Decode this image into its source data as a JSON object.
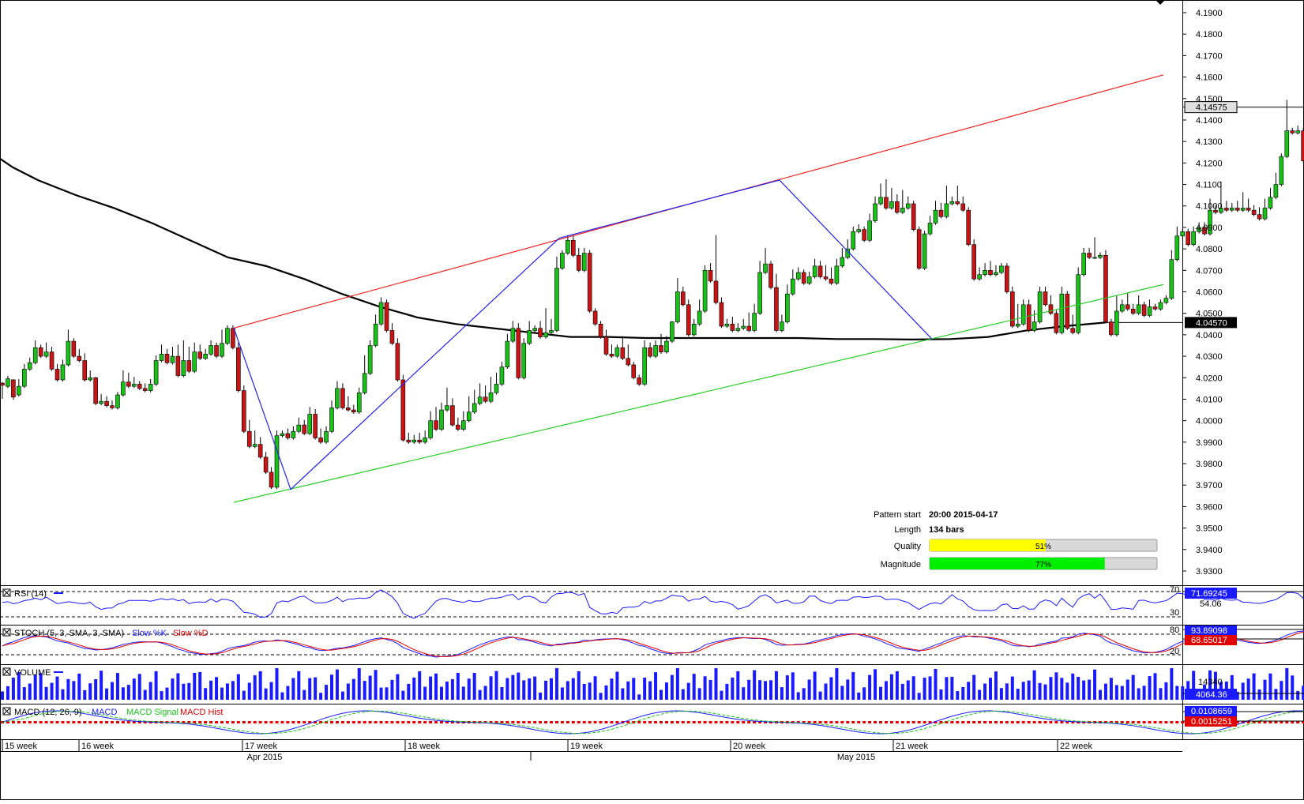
{
  "chart_data": {
    "type": "candlestick",
    "price_axis": {
      "ylim": [
        3.925,
        4.195
      ],
      "ticks": [
        "4.1900",
        "4.1800",
        "4.1700",
        "4.1600",
        "4.1500",
        "4.1400",
        "4.1300",
        "4.1200",
        "4.1100",
        "4.1000",
        "4.0900",
        "4.0800",
        "4.0700",
        "4.0600",
        "4.0500",
        "4.0400",
        "4.0300",
        "4.0200",
        "4.0100",
        "4.0000",
        "3.9900",
        "3.9800",
        "3.9700",
        "3.9600",
        "3.9500",
        "3.9400",
        "3.9300"
      ]
    },
    "current_price_label": "4.14575",
    "moving_average_label": "4.04570",
    "time_axis": {
      "weeks": [
        "15 week",
        "16 week",
        "17 week",
        "18 week",
        "19 week",
        "20 week",
        "21 week",
        "22 week"
      ],
      "months": [
        "Apr 2015",
        "May 2015"
      ]
    },
    "candles": [
      [
        4.0175,
        4.0165,
        4.011
      ],
      [
        4.016,
        4.0195,
        4.0205
      ],
      [
        4.019,
        4.011,
        4.0105
      ],
      [
        4.012,
        4.016,
        4.019
      ],
      [
        4.016,
        4.024,
        4.026
      ],
      [
        4.024,
        4.027,
        4.029
      ],
      [
        4.027,
        4.034,
        4.037
      ],
      [
        4.034,
        4.03,
        4.035
      ],
      [
        4.03,
        4.032,
        4.036
      ],
      [
        4.032,
        4.024,
        4.034
      ],
      [
        4.024,
        4.019,
        4.026
      ],
      [
        4.019,
        4.026,
        4.028
      ],
      [
        4.026,
        4.037,
        4.042
      ],
      [
        4.037,
        4.03,
        4.038
      ],
      [
        4.03,
        4.028,
        4.033
      ],
      [
        4.028,
        4.019,
        4.031
      ],
      [
        4.019,
        4.02,
        4.023
      ],
      [
        4.02,
        4.008,
        4.02
      ],
      [
        4.008,
        4.009,
        4.012
      ],
      [
        4.009,
        4.007,
        4.011
      ],
      [
        4.007,
        4.006,
        4.009
      ],
      [
        4.006,
        4.012,
        4.013
      ],
      [
        4.012,
        4.018,
        4.023
      ],
      [
        4.018,
        4.016,
        4.022
      ],
      [
        4.016,
        4.017,
        4.02
      ],
      [
        4.017,
        4.015,
        4.018
      ],
      [
        4.015,
        4.014,
        4.017
      ],
      [
        4.014,
        4.017,
        4.019
      ],
      [
        4.017,
        4.028,
        4.03
      ],
      [
        4.028,
        4.031,
        4.035
      ],
      [
        4.031,
        4.027,
        4.033
      ],
      [
        4.027,
        4.03,
        4.034
      ],
      [
        4.03,
        4.021,
        4.035
      ],
      [
        4.021,
        4.028,
        4.037
      ],
      [
        4.028,
        4.023,
        4.034
      ],
      [
        4.023,
        4.032,
        4.036
      ],
      [
        4.032,
        4.029,
        4.035
      ],
      [
        4.029,
        4.031,
        4.033
      ],
      [
        4.031,
        4.035,
        4.037
      ],
      [
        4.035,
        4.03,
        4.036
      ],
      [
        4.03,
        4.036,
        4.042
      ],
      [
        4.036,
        4.043,
        4.044
      ],
      [
        4.043,
        4.034,
        4.044
      ],
      [
        4.034,
        4.014,
        4.036
      ],
      [
        4.014,
        3.995,
        4.016
      ],
      [
        3.995,
        3.988,
        4.0
      ],
      [
        3.988,
        3.989,
        3.995
      ],
      [
        3.989,
        3.983,
        3.992
      ],
      [
        3.983,
        3.976,
        3.985
      ],
      [
        3.976,
        3.969,
        3.978
      ],
      [
        3.969,
        3.993,
        3.995
      ],
      [
        3.993,
        3.994,
        3.995
      ],
      [
        3.994,
        3.992,
        3.996
      ],
      [
        3.992,
        3.995,
        3.997
      ],
      [
        3.995,
        3.998,
        4.001
      ],
      [
        3.998,
        3.994,
        4.0
      ],
      [
        3.994,
        4.003,
        4.006
      ],
      [
        4.003,
        3.992,
        4.005
      ],
      [
        3.992,
        3.99,
        3.996
      ],
      [
        3.99,
        3.995,
        3.997
      ],
      [
        3.995,
        4.006,
        4.009
      ],
      [
        4.006,
        4.015,
        4.018
      ],
      [
        4.015,
        4.006,
        4.017
      ],
      [
        4.006,
        4.005,
        4.011
      ],
      [
        4.005,
        4.004,
        4.007
      ],
      [
        4.004,
        4.013,
        4.015
      ],
      [
        4.013,
        4.022,
        4.03
      ],
      [
        4.022,
        4.035,
        4.037
      ],
      [
        4.035,
        4.045,
        4.049
      ],
      [
        4.045,
        4.055,
        4.057
      ],
      [
        4.055,
        4.042,
        4.056
      ],
      [
        4.042,
        4.036,
        4.045
      ],
      [
        4.036,
        4.019,
        4.038
      ],
      [
        4.019,
        3.991,
        4.021
      ],
      [
        3.991,
        3.99,
        3.994
      ],
      [
        3.99,
        3.991,
        3.993
      ],
      [
        3.991,
        3.99,
        3.994
      ],
      [
        3.99,
        3.992,
        3.995
      ],
      [
        3.992,
        4.0,
        4.004
      ],
      [
        4.0,
        3.996,
        4.006
      ],
      [
        3.996,
        4.005,
        4.008
      ],
      [
        4.005,
        4.007,
        4.015
      ],
      [
        4.007,
        3.998,
        4.01
      ],
      [
        3.998,
        3.996,
        4.001
      ],
      [
        3.996,
        4.0,
        4.004
      ],
      [
        4.0,
        4.004,
        4.011
      ],
      [
        4.004,
        4.008,
        4.014
      ],
      [
        4.008,
        4.011,
        4.017
      ],
      [
        4.011,
        4.009,
        4.016
      ],
      [
        4.009,
        4.013,
        4.02
      ],
      [
        4.013,
        4.017,
        4.022
      ],
      [
        4.017,
        4.025,
        4.027
      ],
      [
        4.025,
        4.037,
        4.04
      ],
      [
        4.037,
        4.043,
        4.046
      ],
      [
        4.043,
        4.02,
        4.045
      ],
      [
        4.02,
        4.036,
        4.038
      ],
      [
        4.036,
        4.042,
        4.046
      ],
      [
        4.042,
        4.043,
        4.044
      ],
      [
        4.043,
        4.039,
        4.046
      ],
      [
        4.039,
        4.041,
        4.052
      ],
      [
        4.041,
        4.042,
        4.047
      ],
      [
        4.042,
        4.071,
        4.076
      ],
      [
        4.071,
        4.078,
        4.079
      ],
      [
        4.078,
        4.084,
        4.086
      ],
      [
        4.084,
        4.077,
        4.086
      ],
      [
        4.077,
        4.07,
        4.08
      ],
      [
        4.07,
        4.078,
        4.08
      ],
      [
        4.078,
        4.051,
        4.079
      ],
      [
        4.051,
        4.045,
        4.052
      ],
      [
        4.045,
        4.039,
        4.046
      ],
      [
        4.039,
        4.031,
        4.042
      ],
      [
        4.031,
        4.03,
        4.035
      ],
      [
        4.03,
        4.034,
        4.035
      ],
      [
        4.034,
        4.029,
        4.039
      ],
      [
        4.029,
        4.026,
        4.035
      ],
      [
        4.026,
        4.02,
        4.027
      ],
      [
        4.02,
        4.017,
        4.021
      ],
      [
        4.017,
        4.034,
        4.037
      ],
      [
        4.034,
        4.03,
        4.036
      ],
      [
        4.03,
        4.035,
        4.037
      ],
      [
        4.035,
        4.032,
        4.04
      ],
      [
        4.032,
        4.037,
        4.039
      ],
      [
        4.037,
        4.046,
        4.046
      ],
      [
        4.046,
        4.06,
        4.066
      ],
      [
        4.06,
        4.054,
        4.062
      ],
      [
        4.054,
        4.04,
        4.056
      ],
      [
        4.04,
        4.045,
        4.047
      ],
      [
        4.045,
        4.051,
        4.056
      ],
      [
        4.051,
        4.07,
        4.072
      ],
      [
        4.07,
        4.065,
        4.073
      ],
      [
        4.065,
        4.055,
        4.086
      ],
      [
        4.055,
        4.044,
        4.057
      ],
      [
        4.044,
        4.045,
        4.047
      ],
      [
        4.045,
        4.042,
        4.048
      ],
      [
        4.042,
        4.043,
        4.045
      ],
      [
        4.043,
        4.044,
        4.047
      ],
      [
        4.044,
        4.042,
        4.05
      ],
      [
        4.042,
        4.05,
        4.054
      ],
      [
        4.05,
        4.069,
        4.074
      ],
      [
        4.069,
        4.073,
        4.08
      ],
      [
        4.073,
        4.062,
        4.074
      ],
      [
        4.062,
        4.042,
        4.068
      ],
      [
        4.042,
        4.046,
        4.049
      ],
      [
        4.046,
        4.059,
        4.063
      ],
      [
        4.059,
        4.066,
        4.07
      ],
      [
        4.066,
        4.069,
        4.071
      ],
      [
        4.069,
        4.064,
        4.07
      ],
      [
        4.064,
        4.067,
        4.069
      ],
      [
        4.067,
        4.072,
        4.075
      ],
      [
        4.072,
        4.067,
        4.074
      ],
      [
        4.067,
        4.066,
        4.072
      ],
      [
        4.066,
        4.064,
        4.071
      ],
      [
        4.064,
        4.072,
        4.075
      ],
      [
        4.072,
        4.076,
        4.08
      ],
      [
        4.076,
        4.08,
        4.084
      ],
      [
        4.08,
        4.088,
        4.09
      ],
      [
        4.088,
        4.089,
        4.091
      ],
      [
        4.089,
        4.084,
        4.09
      ],
      [
        4.084,
        4.093,
        4.096
      ],
      [
        4.093,
        4.101,
        4.104
      ],
      [
        4.101,
        4.104,
        4.11
      ],
      [
        4.104,
        4.099,
        4.112
      ],
      [
        4.099,
        4.102,
        4.108
      ],
      [
        4.102,
        4.097,
        4.105
      ],
      [
        4.097,
        4.099,
        4.107
      ],
      [
        4.099,
        4.101,
        4.104
      ],
      [
        4.101,
        4.089,
        4.102
      ],
      [
        4.089,
        4.071,
        4.09
      ],
      [
        4.071,
        4.087,
        4.088
      ],
      [
        4.087,
        4.092,
        4.095
      ],
      [
        4.092,
        4.098,
        4.102
      ],
      [
        4.098,
        4.095,
        4.101
      ],
      [
        4.095,
        4.101,
        4.109
      ],
      [
        4.101,
        4.102,
        4.104
      ],
      [
        4.102,
        4.101,
        4.109
      ],
      [
        4.101,
        4.098,
        4.104
      ],
      [
        4.098,
        4.082,
        4.099
      ],
      [
        4.082,
        4.066,
        4.084
      ],
      [
        4.066,
        4.068,
        4.071
      ],
      [
        4.068,
        4.07,
        4.073
      ],
      [
        4.07,
        4.068,
        4.074
      ],
      [
        4.068,
        4.069,
        4.072
      ],
      [
        4.069,
        4.072,
        4.073
      ],
      [
        4.072,
        4.06,
        4.073
      ],
      [
        4.06,
        4.044,
        4.062
      ],
      [
        4.044,
        4.045,
        4.054
      ],
      [
        4.045,
        4.054,
        4.056
      ],
      [
        4.054,
        4.042,
        4.056
      ],
      [
        4.042,
        4.046,
        4.051
      ],
      [
        4.046,
        4.06,
        4.062
      ],
      [
        4.06,
        4.054,
        4.062
      ],
      [
        4.054,
        4.05,
        4.058
      ],
      [
        4.05,
        4.041,
        4.051
      ],
      [
        4.041,
        4.059,
        4.062
      ],
      [
        4.059,
        4.043,
        4.06
      ],
      [
        4.043,
        4.041,
        4.049
      ],
      [
        4.041,
        4.068,
        4.071
      ],
      [
        4.068,
        4.078,
        4.08
      ],
      [
        4.078,
        4.076,
        4.08
      ],
      [
        4.076,
        4.076,
        4.085
      ],
      [
        4.076,
        4.077,
        4.078
      ],
      [
        4.077,
        4.046,
        4.079
      ],
      [
        4.046,
        4.04,
        4.047
      ],
      [
        4.04,
        4.051,
        4.058
      ],
      [
        4.051,
        4.054,
        4.056
      ],
      [
        4.054,
        4.052,
        4.059
      ],
      [
        4.052,
        4.05,
        4.054
      ],
      [
        4.05,
        4.054,
        4.058
      ],
      [
        4.054,
        4.049,
        4.055
      ],
      [
        4.049,
        4.053,
        4.056
      ],
      [
        4.053,
        4.052,
        4.054
      ],
      [
        4.052,
        4.055,
        4.056
      ],
      [
        4.055,
        4.057,
        4.058
      ],
      [
        4.057,
        4.075,
        4.079
      ],
      [
        4.075,
        4.086,
        4.09
      ],
      [
        4.086,
        4.088,
        4.089
      ],
      [
        4.088,
        4.082,
        4.089
      ],
      [
        4.082,
        4.088,
        4.09
      ],
      [
        4.088,
        4.09,
        4.092
      ],
      [
        4.09,
        4.087,
        4.092
      ],
      [
        4.087,
        4.098,
        4.103
      ],
      [
        4.098,
        4.097,
        4.1
      ],
      [
        4.097,
        4.099,
        4.111
      ],
      [
        4.099,
        4.098,
        4.102
      ],
      [
        4.098,
        4.099,
        4.101
      ],
      [
        4.099,
        4.098,
        4.102
      ],
      [
        4.098,
        4.099,
        4.106
      ],
      [
        4.099,
        4.098,
        4.103
      ],
      [
        4.098,
        4.096,
        4.1
      ],
      [
        4.096,
        4.094,
        4.099
      ],
      [
        4.094,
        4.099,
        4.103
      ],
      [
        4.099,
        4.104,
        4.108
      ],
      [
        4.104,
        4.11,
        4.115
      ],
      [
        4.11,
        4.123,
        4.124
      ],
      [
        4.123,
        4.135,
        4.149
      ],
      [
        4.135,
        4.134,
        4.136
      ],
      [
        4.134,
        4.135,
        4.137
      ],
      [
        4.135,
        4.121,
        4.136
      ],
      [
        4.121,
        4.111,
        4.122
      ],
      [
        4.111,
        4.109,
        4.113
      ],
      [
        4.109,
        4.108,
        4.111
      ],
      [
        4.108,
        4.107,
        4.11
      ],
      [
        4.107,
        4.109,
        4.112
      ],
      [
        4.109,
        4.104,
        4.11
      ],
      [
        4.104,
        4.121,
        4.122
      ],
      [
        4.121,
        4.138,
        4.141
      ],
      [
        4.138,
        4.146,
        4.15
      ]
    ],
    "moving_average": [
      [
        0,
        4.122
      ],
      [
        10,
        4.118
      ],
      [
        30,
        4.112
      ],
      [
        60,
        4.105
      ],
      [
        90,
        4.099
      ],
      [
        120,
        4.092
      ],
      [
        150,
        4.084
      ],
      [
        180,
        4.076
      ],
      [
        210,
        4.072
      ],
      [
        240,
        4.066
      ],
      [
        270,
        4.059
      ],
      [
        300,
        4.053
      ],
      [
        330,
        4.048
      ],
      [
        360,
        4.045
      ],
      [
        390,
        4.043
      ],
      [
        420,
        4.041
      ],
      [
        450,
        4.039
      ],
      [
        480,
        4.039
      ],
      [
        510,
        4.0385
      ],
      [
        540,
        4.0385
      ],
      [
        570,
        4.0385
      ],
      [
        600,
        4.0385
      ],
      [
        630,
        4.0385
      ],
      [
        660,
        4.038
      ],
      [
        690,
        4.038
      ],
      [
        720,
        4.0378
      ],
      [
        750,
        4.038
      ],
      [
        780,
        4.039
      ],
      [
        810,
        4.042
      ],
      [
        840,
        4.044
      ],
      [
        872,
        4.0457
      ]
    ],
    "pattern_lines": {
      "upper_resistance": [
        [
          4.0431,
          4.0431
        ],
        [
          1473,
          4.161
        ]
      ],
      "lower_support": [
        [
          3.962,
          3.962
        ],
        [
          1473,
          4.0634
        ]
      ],
      "zigzag": [
        [
          4.0431
        ],
        [
          3.968
        ],
        [
          4.085
        ],
        [
          4.112
        ],
        [
          4.038
        ]
      ]
    },
    "pattern_info": {
      "start_label": "Pattern start",
      "start_value": "20:00 2015-04-17",
      "length_label": "Length",
      "length_value": "134 bars",
      "quality_label": "Quality",
      "quality_value": "51%",
      "quality_fraction": 0.51,
      "magnitude_label": "Magnitude",
      "magnitude_value": "77%",
      "magnitude_fraction": 0.77
    },
    "indicators": {
      "rsi": {
        "label": "RSI (14)",
        "levels": [
          "70",
          "30"
        ],
        "mid_label": "54.06",
        "value_label": "71.69245",
        "color": "#1a1aff"
      },
      "stoch": {
        "label": "STOCH (5, 3, SMA, 3, SMA)",
        "slow_k_label": "Slow %K",
        "slow_d_label": "Slow %D",
        "levels": [
          "80",
          "20"
        ],
        "k_value_label": "93.89098",
        "d_value_label": "68.65017",
        "k_color": "#1a1aff",
        "d_color": "#e00000"
      },
      "volume": {
        "label": "VOLUME",
        "level_label": "14340",
        "value_label": "4064.36",
        "color": "#1a1aff"
      },
      "macd": {
        "label": "MACD (12, 26, 9)",
        "macd_label": "MACD",
        "signal_label": "MACD Signal",
        "hist_label": "MACD Hist",
        "macd_value_label": "0.0108659",
        "hist_value_label": "0.0015251",
        "macd_color": "#1a1aff",
        "signal_color": "#18c018",
        "hist_color": "#e00000"
      }
    },
    "colors": {
      "bull": "#18c018",
      "bear": "#c81414",
      "upper_line": "#ee2222",
      "lower_line": "#22cc22",
      "zigzag": "#2222ee",
      "ma": "#000000",
      "quality_bar": "#ffff00",
      "magnitude_bar": "#00ee00"
    }
  }
}
